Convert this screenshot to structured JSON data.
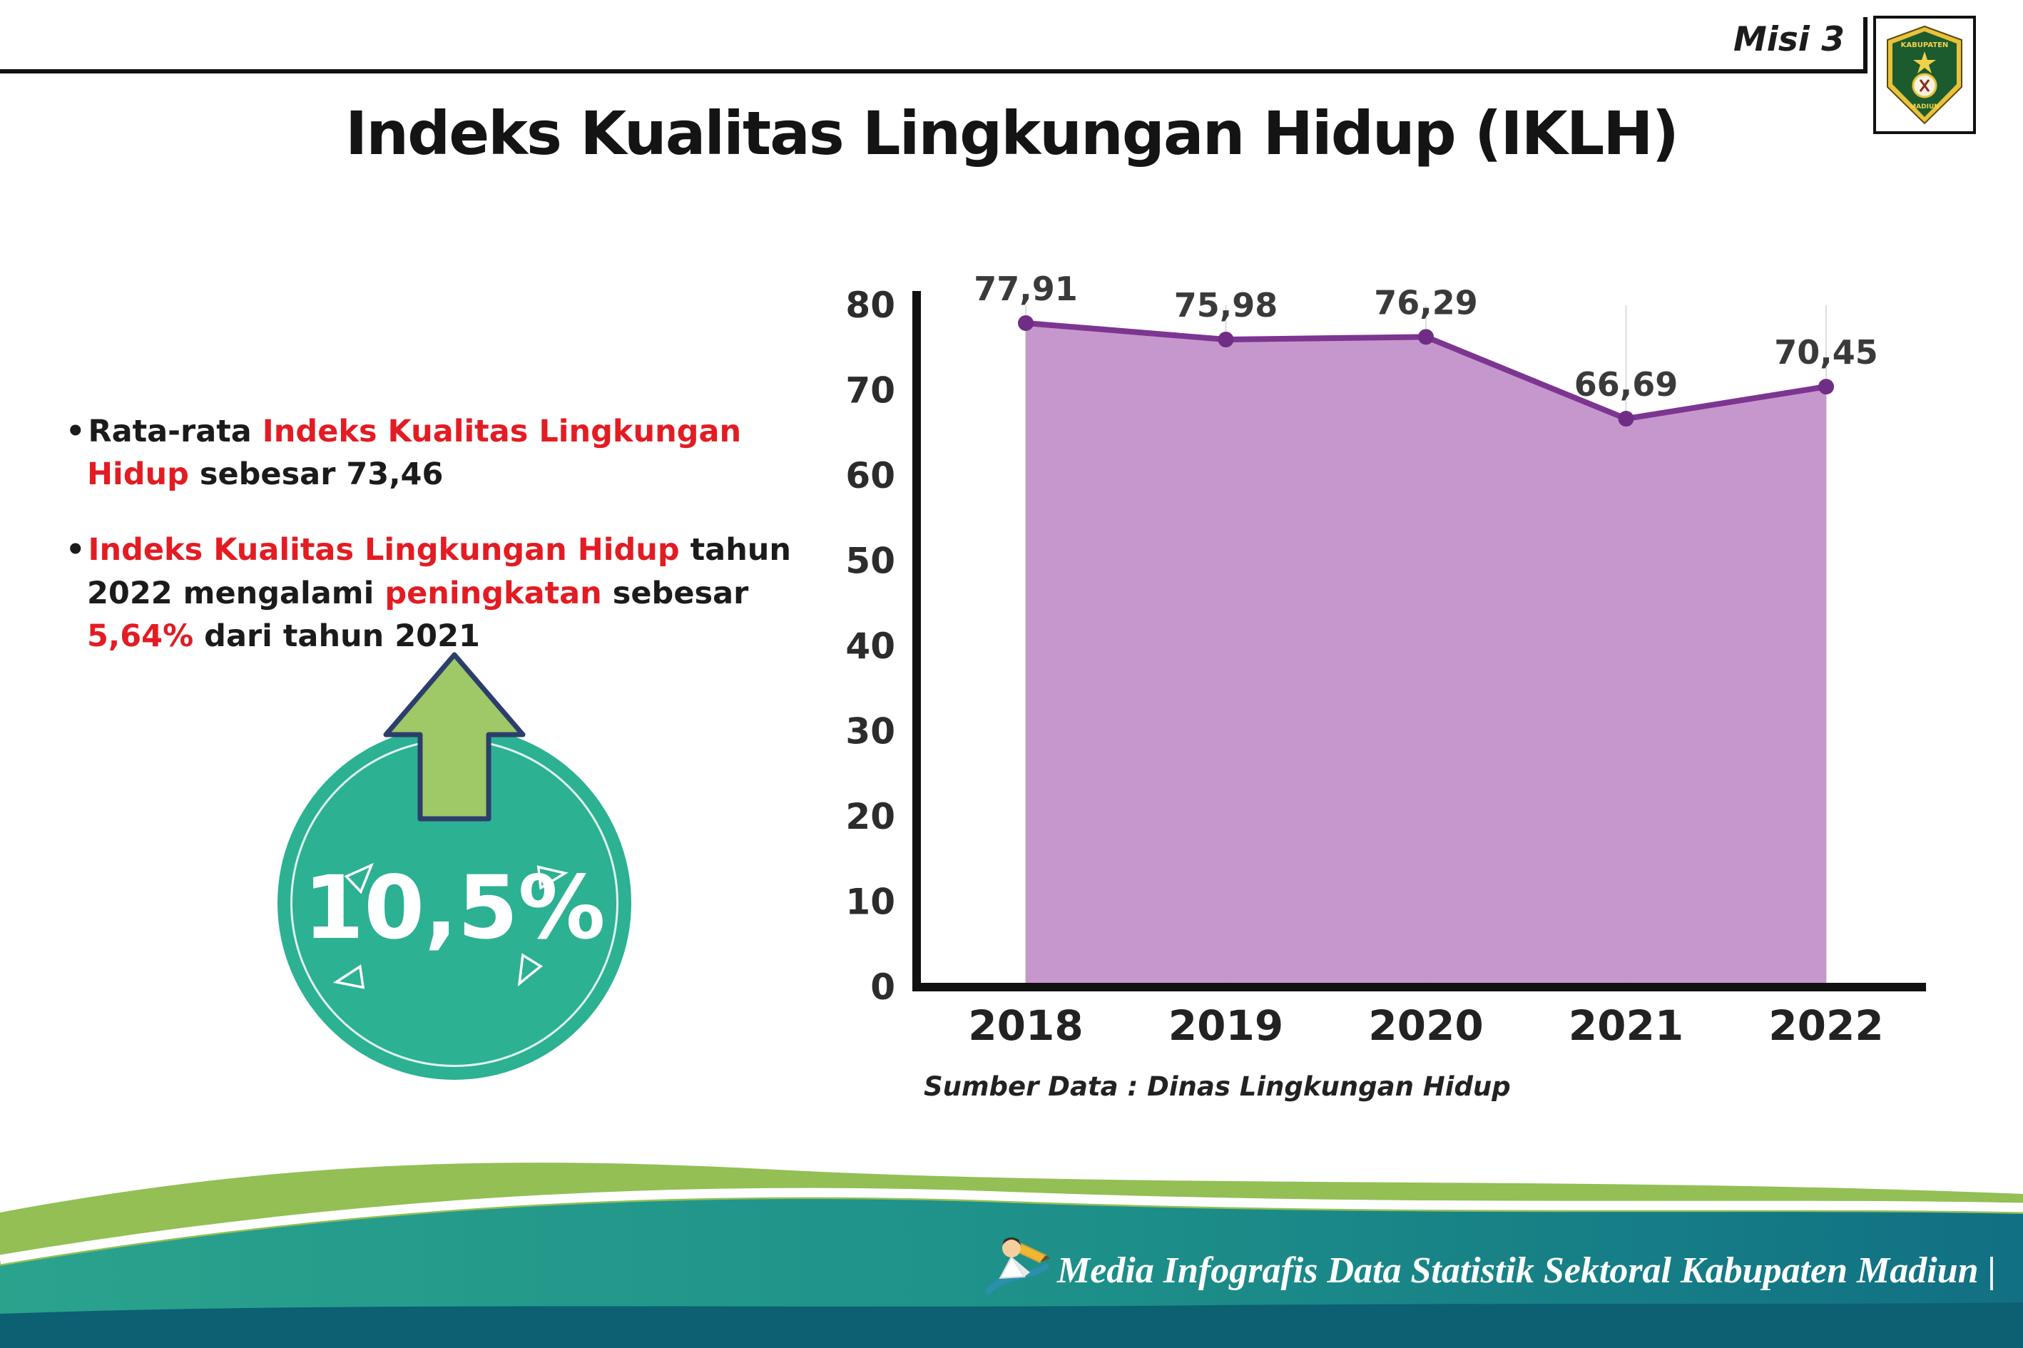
{
  "header": {
    "title": "Indeks Kualitas Lingkungan Hidup (IKLH)",
    "misi": "Misi 3"
  },
  "logo": {
    "top": "KABUPATEN",
    "bottom": "MADIUN"
  },
  "left_panel": {
    "bullets": [
      {
        "segments": [
          {
            "text": "Rata-rata ",
            "style": "dark"
          },
          {
            "text": "Indeks Kualitas Lingkungan Hidup",
            "style": "red"
          },
          {
            "text": " sebesar 73,46",
            "style": "dark"
          }
        ]
      },
      {
        "segments": [
          {
            "text": "Indeks Kualitas Lingkungan Hidup",
            "style": "red"
          },
          {
            "text": " tahun 2022 mengalami ",
            "style": "dark"
          },
          {
            "text": "peningkatan",
            "style": "red"
          },
          {
            "text": " sebesar ",
            "style": "dark"
          },
          {
            "text": "5,64%",
            "style": "red"
          },
          {
            "text": " dari tahun 2021",
            "style": "dark"
          }
        ]
      }
    ],
    "highlight": {
      "value": "10,5%",
      "icon": "up-arrow-icon",
      "circle_color": "#2cb192",
      "arrow_color": "#9fc867"
    }
  },
  "chart_data": {
    "type": "area",
    "title": "",
    "categories": [
      "2018",
      "2019",
      "2020",
      "2021",
      "2022"
    ],
    "values": [
      77.91,
      75.98,
      76.29,
      66.69,
      70.45
    ],
    "point_labels": [
      "77,91",
      "75,98",
      "76,29",
      "66,69",
      "70,45"
    ],
    "xlabel": "",
    "ylabel": "",
    "ylim": [
      0,
      80
    ],
    "ytick_step": 10,
    "grid": "vertical-light",
    "legend": "none",
    "line_color": "#7c3591",
    "fill_color": "#c391c9",
    "point_color": "#6f2d85",
    "axis_color": "#111111",
    "label_color": "#3a3a3a",
    "source_note": "Sumber Data : Dinas Lingkungan Hidup"
  },
  "footer": {
    "credit": "Media Infografis Data Statistik Sektoral Kabupaten Madiun |"
  }
}
